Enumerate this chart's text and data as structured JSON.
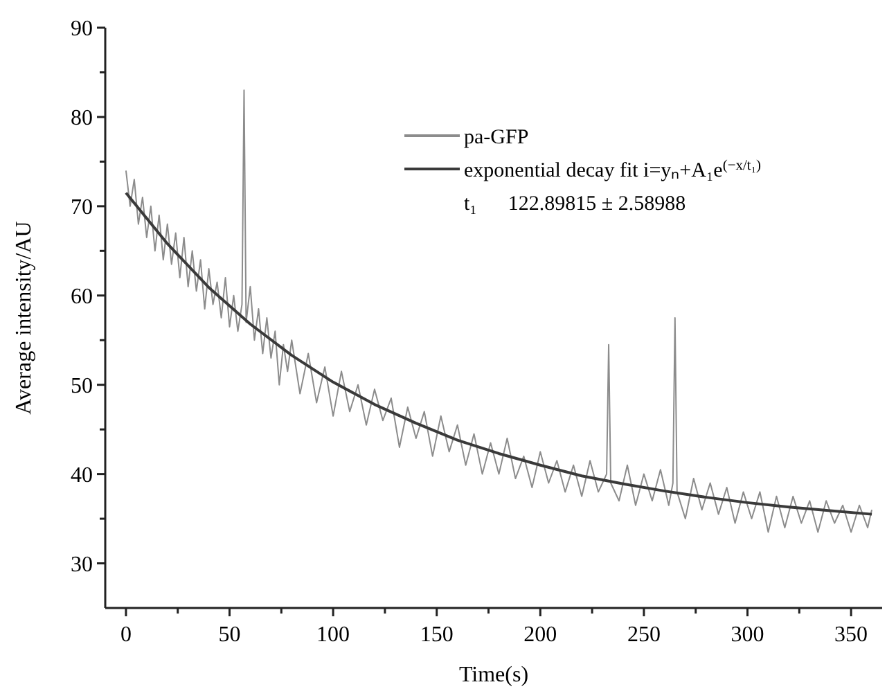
{
  "chart_data": {
    "type": "line",
    "xlabel": "Time(s)",
    "ylabel": "Average intensity/AU",
    "xlim": [
      -10,
      365
    ],
    "ylim": [
      25,
      90
    ],
    "xticks": [
      0,
      {
        "value": 25,
        "label": null
      },
      50,
      {
        "value": 75,
        "label": null
      },
      100,
      {
        "value": 125,
        "label": null
      },
      150,
      {
        "value": 175,
        "label": null
      },
      200,
      {
        "value": 225,
        "label": null
      },
      250,
      {
        "value": 275,
        "label": null
      },
      300,
      {
        "value": 325,
        "label": null
      },
      350
    ],
    "yticks": [
      30,
      {
        "value": 35,
        "label": null
      },
      40,
      {
        "value": 45,
        "label": null
      },
      50,
      {
        "value": 55,
        "label": null
      },
      60,
      {
        "value": 65,
        "label": null
      },
      70,
      {
        "value": 75,
        "label": null
      },
      80,
      {
        "value": 85,
        "label": null
      },
      90
    ],
    "legend": "top right",
    "grid": false,
    "marker": "none",
    "line_style": "solid",
    "annotations": [
      "t₁      122.89815 ± 2.58988"
    ],
    "series": [
      {
        "name": "pa-GFP",
        "color": "#8c8c8c",
        "x": [
          0,
          2,
          4,
          6,
          8,
          10,
          12,
          14,
          16,
          18,
          20,
          22,
          24,
          26,
          28,
          30,
          32,
          34,
          36,
          38,
          40,
          42,
          44,
          46,
          48,
          50,
          52,
          54,
          56,
          57,
          58,
          60,
          62,
          64,
          66,
          68,
          70,
          72,
          74,
          76,
          78,
          80,
          84,
          88,
          92,
          96,
          100,
          104,
          108,
          112,
          116,
          120,
          124,
          128,
          132,
          136,
          140,
          144,
          148,
          152,
          156,
          160,
          164,
          168,
          172,
          176,
          180,
          184,
          188,
          192,
          196,
          200,
          204,
          208,
          212,
          216,
          220,
          224,
          228,
          232,
          233,
          234,
          238,
          242,
          246,
          250,
          254,
          258,
          262,
          264,
          265,
          266,
          270,
          274,
          278,
          282,
          286,
          290,
          294,
          298,
          302,
          306,
          310,
          314,
          318,
          322,
          326,
          330,
          334,
          338,
          342,
          346,
          350,
          354,
          358,
          360
        ],
        "values": [
          74,
          70,
          73,
          68,
          71,
          66.5,
          70,
          65,
          69,
          64,
          68,
          63.5,
          67,
          62,
          66.5,
          61,
          65,
          60.5,
          64,
          58.5,
          63,
          59,
          61.5,
          57.5,
          62,
          56.5,
          60,
          56,
          59,
          83,
          57,
          61,
          55,
          58.5,
          53.5,
          57.5,
          53,
          56,
          50,
          54.5,
          51.5,
          55,
          49,
          53.5,
          48,
          52,
          46.5,
          51.5,
          47,
          50,
          45.5,
          49.5,
          46,
          48.5,
          43,
          47.5,
          44,
          47,
          42,
          46.5,
          42.5,
          45.5,
          41,
          44.5,
          40,
          43.5,
          40,
          44,
          39.5,
          42,
          38.5,
          42.5,
          39,
          41.5,
          38,
          41,
          37.5,
          41.5,
          38,
          40,
          54.5,
          39,
          37,
          41,
          36.5,
          40,
          37,
          40.5,
          36.5,
          39,
          57.5,
          38,
          35,
          39.5,
          36,
          39,
          35.5,
          38.5,
          34.5,
          38,
          35,
          38,
          33.5,
          37.5,
          34,
          37.5,
          34.5,
          37,
          33.5,
          37,
          34.5,
          36.5,
          33.5,
          36.5,
          34,
          36
        ]
      },
      {
        "name": "exponential decay fit i=yₙ+A₁e$^{(−x/t₁)}$",
        "color": "#3a3a3a",
        "x": [
          0,
          20,
          40,
          60,
          80,
          100,
          120,
          140,
          160,
          180,
          200,
          220,
          240,
          260,
          280,
          300,
          320,
          340,
          360
        ],
        "values": [
          71.5,
          65.8,
          60.9,
          56.8,
          53.3,
          50.3,
          47.8,
          45.7,
          43.8,
          42.3,
          41.0,
          39.8,
          38.9,
          38.1,
          37.4,
          36.8,
          36.3,
          35.9,
          35.5
        ]
      }
    ]
  }
}
